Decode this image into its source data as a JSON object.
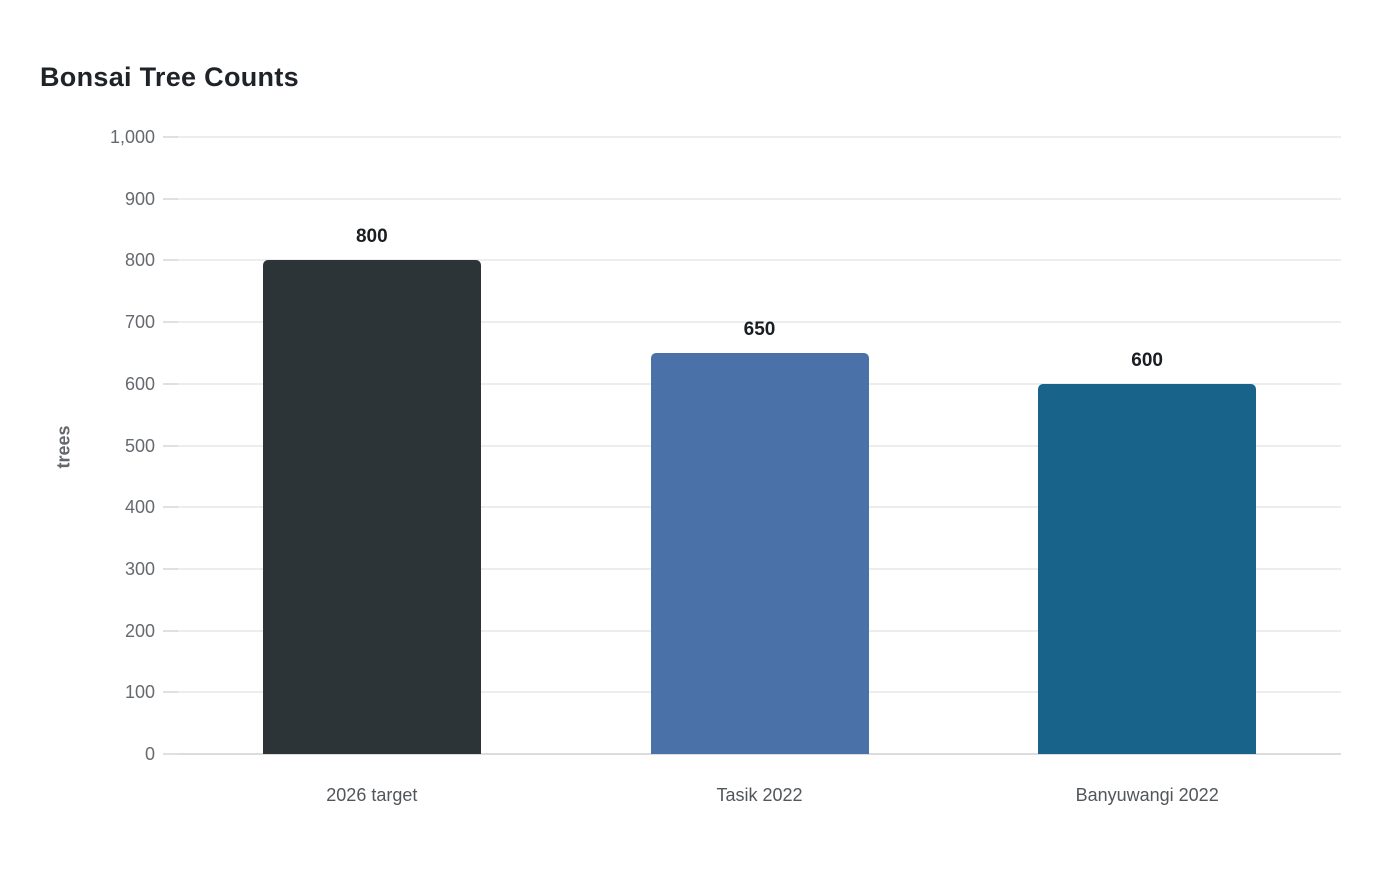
{
  "chart_data": {
    "type": "bar",
    "title": "Bonsai Tree Counts",
    "xlabel": "",
    "ylabel": "trees",
    "categories": [
      "2026 target",
      "Tasik 2022",
      "Banyuwangi 2022"
    ],
    "values": [
      800,
      650,
      600
    ],
    "value_labels": [
      "800",
      "650",
      "600"
    ],
    "bar_colors": [
      "#2c3437",
      "#4a72a8",
      "#176389"
    ],
    "ylim": [
      0,
      1000
    ],
    "yticks": [
      {
        "value": 0,
        "label": "0"
      },
      {
        "value": 100,
        "label": "100"
      },
      {
        "value": 200,
        "label": "200"
      },
      {
        "value": 300,
        "label": "300"
      },
      {
        "value": 400,
        "label": "400"
      },
      {
        "value": 500,
        "label": "500"
      },
      {
        "value": 600,
        "label": "600"
      },
      {
        "value": 700,
        "label": "700"
      },
      {
        "value": 800,
        "label": "800"
      },
      {
        "value": 900,
        "label": "900"
      },
      {
        "value": 1000,
        "label": "1,000"
      }
    ],
    "grid": true,
    "legend_position": "none"
  },
  "theme": {
    "background": "#ffffff",
    "title_color": "#1f2328",
    "axis_title_color": "#63676c",
    "tick_label_color": "#666a6f",
    "category_label_color": "#52565b",
    "value_label_color": "#1a1d21",
    "gridline_color": "#ededed",
    "baseline_color": "#dcdcdc",
    "axis_line_color": "#e6e6e6",
    "tick_mark_color": "#e0e0e0"
  }
}
